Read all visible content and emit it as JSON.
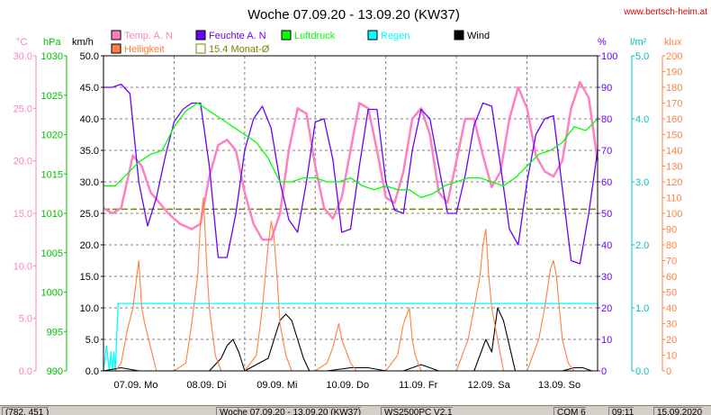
{
  "header": {
    "title": "Woche 07.09.20 - 13.09.20 (KW37)",
    "url": "www.bertsch-heim.at"
  },
  "axes_units": {
    "temp": "°C",
    "pressure": "hPa",
    "wind": "km/h",
    "humidity": "%",
    "rain": "l/m²",
    "brightness": "klux"
  },
  "legend": [
    {
      "label": "Temp. A. N",
      "color": "#ff80c0"
    },
    {
      "label": "Feuchte A. N",
      "color": "#6a00ff"
    },
    {
      "label": "Luftdruck",
      "color": "#00ff00"
    },
    {
      "label": "Regen",
      "color": "#00ffff"
    },
    {
      "label": "Wind",
      "color": "#000000"
    },
    {
      "label": "Helligkeit",
      "color": "#ff8040"
    },
    {
      "label": "15.4 Monat-Ø",
      "color": "#808000"
    }
  ],
  "statusbar": [
    {
      "text": "(782, 451 )"
    },
    {
      "text": "Woche 07.09.20 - 13.09.20 (KW37)"
    },
    {
      "text": "WS2500PC V2.1"
    },
    {
      "text": "COM 6"
    },
    {
      "text": "09:11"
    },
    {
      "text": "15.09.2020"
    }
  ],
  "chart_data": {
    "type": "line",
    "title": "Woche 07.09.20 - 13.09.20 (KW37)",
    "x_categories": [
      "07.09. Mo",
      "08.09. Di",
      "09.09. Mi",
      "10.09. Do",
      "11.09. Fr",
      "12.09. Sa",
      "13.09. So"
    ],
    "x_unit": "hours since 07.09. 00:00",
    "x_range": [
      0,
      168
    ],
    "grid": true,
    "y_axes": {
      "temp": {
        "label": "°C",
        "range": [
          0,
          30
        ],
        "ticks": [
          0,
          5,
          10,
          15,
          20,
          25,
          30
        ]
      },
      "pressure": {
        "label": "hPa",
        "range": [
          990,
          1030
        ],
        "ticks": [
          990,
          995,
          1000,
          1005,
          1010,
          1015,
          1020,
          1025,
          1030
        ]
      },
      "wind": {
        "label": "km/h",
        "range": [
          0,
          50
        ],
        "ticks": [
          0,
          5,
          10,
          15,
          20,
          25,
          30,
          35,
          40,
          45,
          50
        ]
      },
      "humidity": {
        "label": "%",
        "range": [
          0,
          100
        ],
        "ticks": [
          0,
          10,
          20,
          30,
          40,
          50,
          60,
          70,
          80,
          90,
          100
        ]
      },
      "rain": {
        "label": "l/m²",
        "range": [
          0,
          5
        ],
        "ticks": [
          0,
          1,
          2,
          3,
          4,
          5
        ]
      },
      "brightness": {
        "label": "klux",
        "range": [
          0,
          200
        ],
        "ticks": [
          0,
          10,
          20,
          30,
          40,
          50,
          60,
          70,
          80,
          90,
          100,
          110,
          120,
          130,
          140,
          150,
          160,
          170,
          180,
          190,
          200
        ]
      }
    },
    "average_line": {
      "name": "15.4 Monat-Ø",
      "axis": "temp",
      "value": 15.4
    },
    "series": [
      {
        "name": "Temp. A. N",
        "axis": "temp",
        "color": "#ff80c0",
        "x": [
          0,
          3,
          6,
          10,
          13,
          16,
          19,
          22,
          26,
          30,
          33,
          36,
          39,
          42,
          45,
          48,
          51,
          54,
          57,
          60,
          63,
          66,
          69,
          72,
          75,
          78,
          81,
          84,
          87,
          90,
          93,
          96,
          99,
          102,
          105,
          108,
          111,
          114,
          117,
          120,
          123,
          126,
          129,
          132,
          135,
          138,
          141,
          144,
          147,
          150,
          153,
          156,
          159,
          162,
          165,
          168
        ],
        "y": [
          15.5,
          15.0,
          15.5,
          20.5,
          19.5,
          17.0,
          16.0,
          15.0,
          14.0,
          13.5,
          14.0,
          18.5,
          21.5,
          22.0,
          21.0,
          17.0,
          14.0,
          12.5,
          12.5,
          15.0,
          21.0,
          25.0,
          24.5,
          19.5,
          15.5,
          14.5,
          16.5,
          21.0,
          25.5,
          25.0,
          21.0,
          16.5,
          16.0,
          19.0,
          24.0,
          25.0,
          22.5,
          17.0,
          16.0,
          20.0,
          24.0,
          24.0,
          20.5,
          17.5,
          19.0,
          24.0,
          27.0,
          25.0,
          20.5,
          19.0,
          18.5,
          20.0,
          25.0,
          27.5,
          26.0,
          20.0
        ]
      },
      {
        "name": "Feuchte A. N",
        "axis": "humidity",
        "color": "#6a00ff",
        "x": [
          0,
          3,
          6,
          9,
          12,
          15,
          18,
          21,
          24,
          27,
          30,
          33,
          36,
          39,
          42,
          45,
          48,
          51,
          54,
          57,
          60,
          63,
          66,
          69,
          72,
          75,
          78,
          81,
          84,
          87,
          90,
          93,
          96,
          99,
          102,
          105,
          108,
          111,
          114,
          117,
          120,
          123,
          126,
          129,
          132,
          135,
          138,
          141,
          144,
          147,
          150,
          153,
          156,
          159,
          162,
          165,
          168
        ],
        "y": [
          90,
          90,
          91,
          88,
          60,
          46,
          55,
          68,
          79,
          83,
          85,
          85,
          65,
          36,
          36,
          50,
          70,
          80,
          84,
          77,
          60,
          48,
          44,
          60,
          79,
          80,
          67,
          44,
          45,
          65,
          83,
          83,
          60,
          51,
          50,
          70,
          83,
          80,
          65,
          50,
          50,
          62,
          78,
          85,
          84,
          65,
          45,
          40,
          60,
          75,
          80,
          81,
          58,
          35,
          34,
          50,
          70
        ]
      },
      {
        "name": "Luftdruck",
        "axis": "pressure",
        "color": "#00ff00",
        "x": [
          0,
          4,
          8,
          12,
          16,
          20,
          24,
          28,
          32,
          36,
          40,
          44,
          48,
          52,
          56,
          60,
          64,
          68,
          72,
          76,
          80,
          84,
          88,
          92,
          96,
          100,
          104,
          108,
          112,
          116,
          120,
          124,
          128,
          132,
          136,
          140,
          144,
          148,
          152,
          156,
          160,
          164,
          168
        ],
        "y": [
          1013.5,
          1013.5,
          1015,
          1016.5,
          1017.5,
          1018,
          1021,
          1023,
          1024,
          1023,
          1022,
          1021,
          1020,
          1019,
          1017,
          1014,
          1014,
          1014.5,
          1014.5,
          1014,
          1014,
          1014.5,
          1013.5,
          1013,
          1013.5,
          1013,
          1013,
          1012,
          1012.5,
          1013.5,
          1014,
          1014.5,
          1014.5,
          1014,
          1013.5,
          1014.5,
          1016,
          1017.5,
          1018,
          1019,
          1021,
          1020.5,
          1022
        ]
      },
      {
        "name": "Regen",
        "axis": "rain",
        "color": "#00ffff",
        "x": [
          0,
          1,
          2,
          2.5,
          3,
          3.5,
          4,
          5,
          168
        ],
        "y": [
          0,
          0.4,
          0,
          0.3,
          0,
          0.3,
          0,
          1.07,
          1.07
        ]
      },
      {
        "name": "Wind",
        "axis": "wind",
        "color": "#000000",
        "x": [
          0,
          6,
          12,
          18,
          24,
          30,
          36,
          40,
          42,
          44,
          46,
          48,
          52,
          56,
          60,
          62,
          64,
          66,
          68,
          70,
          72,
          76,
          84,
          90,
          96,
          102,
          108,
          114,
          120,
          126,
          130,
          132,
          134,
          136,
          138,
          140,
          144,
          150,
          156,
          160,
          163,
          166,
          168
        ],
        "y": [
          0,
          0.5,
          0,
          0,
          0,
          0,
          0,
          2,
          4,
          5,
          3,
          0,
          1,
          2,
          8,
          9,
          8,
          5,
          2,
          0,
          0,
          0,
          0.5,
          0.5,
          0,
          0,
          1,
          0,
          0,
          0,
          5,
          3,
          10,
          8,
          4,
          0,
          0,
          0,
          0,
          0.5,
          0.5,
          0,
          0
        ]
      },
      {
        "name": "Helligkeit",
        "axis": "brightness",
        "color": "#ff8040",
        "x": [
          0,
          4,
          6,
          8,
          10,
          11,
          12,
          13,
          14,
          16,
          18,
          24,
          28,
          30,
          32,
          33,
          34,
          35,
          36,
          38,
          40,
          48,
          52,
          54,
          56,
          57,
          58,
          59,
          60,
          62,
          64,
          72,
          76,
          78,
          80,
          81,
          82,
          83,
          84,
          86,
          88,
          96,
          100,
          102,
          104,
          105,
          106,
          107,
          108,
          110,
          112,
          120,
          124,
          126,
          128,
          129,
          130,
          131,
          132,
          134,
          136,
          144,
          148,
          150,
          152,
          153,
          154,
          155,
          156,
          158,
          160,
          168
        ],
        "y": [
          0,
          0,
          5,
          25,
          40,
          55,
          70,
          40,
          30,
          15,
          0,
          0,
          5,
          30,
          60,
          95,
          110,
          70,
          40,
          10,
          0,
          0,
          10,
          40,
          80,
          95,
          85,
          60,
          30,
          10,
          0,
          0,
          5,
          15,
          30,
          20,
          15,
          10,
          5,
          0,
          0,
          0,
          10,
          30,
          40,
          20,
          10,
          5,
          0,
          0,
          0,
          0,
          20,
          40,
          60,
          80,
          90,
          60,
          40,
          20,
          0,
          0,
          20,
          40,
          65,
          70,
          60,
          40,
          20,
          5,
          0,
          0
        ]
      }
    ]
  }
}
